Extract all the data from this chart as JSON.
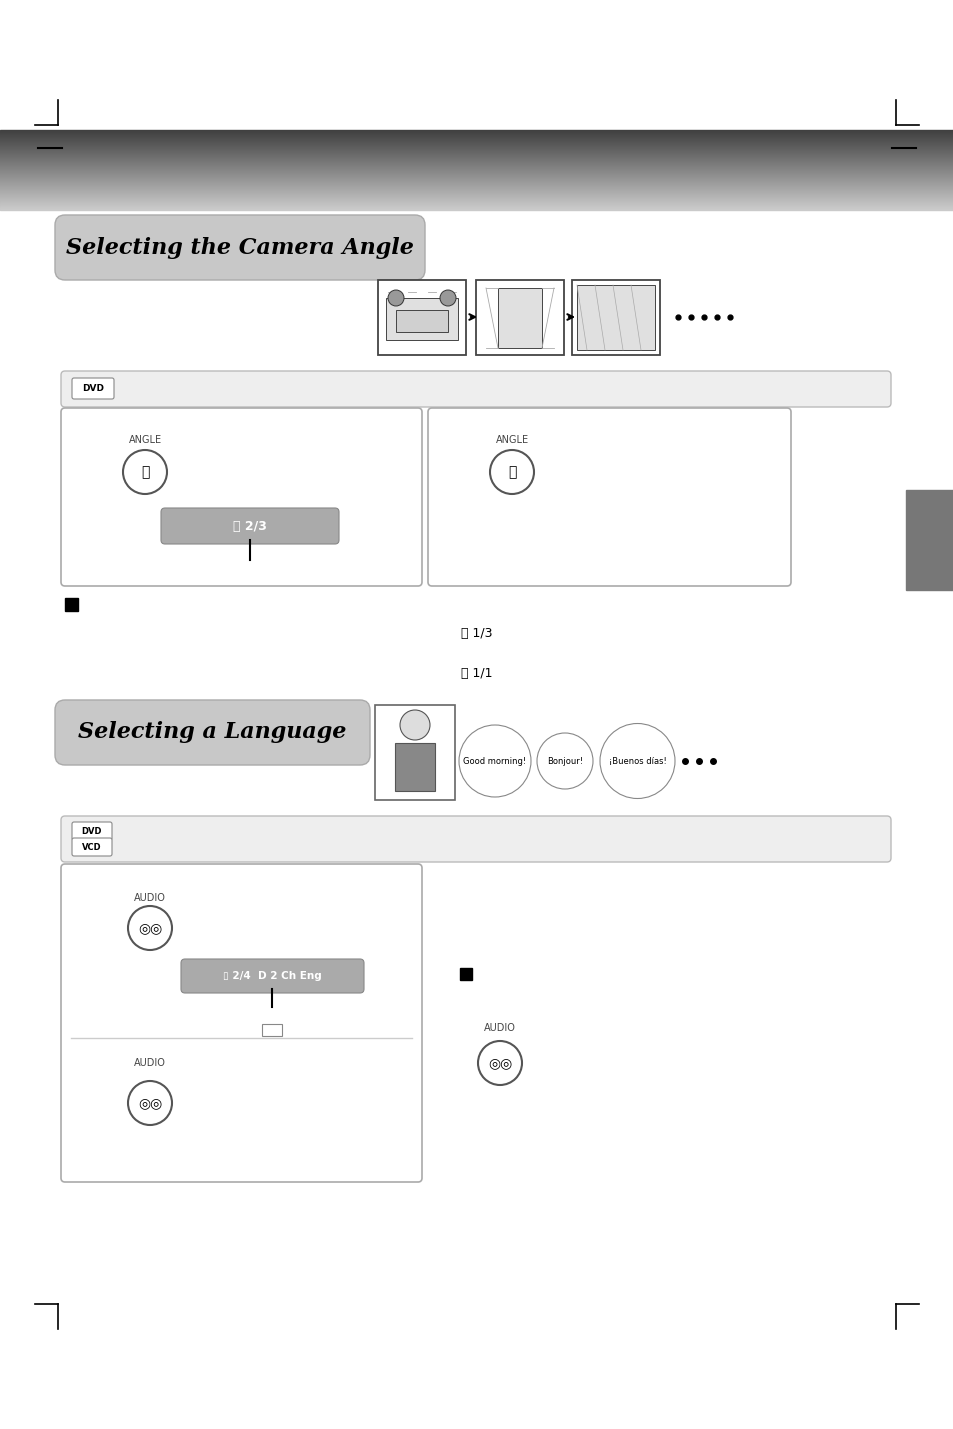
{
  "bg_color": "#ffffff",
  "section1_title": "Selecting the Camera Angle",
  "section2_title": "Selecting a Language",
  "dvd_label": "DVD",
  "vcd_label": "VCD",
  "angle_label": "ANGLE",
  "audio_label": "AUDIO",
  "osd_angle": "2/3",
  "osd_audio": "2/4  D 2 Ch Eng",
  "note_text1": "1/3",
  "note_text2": "1/1",
  "bubble1": "Good morning!",
  "bubble2": "Bonjour!",
  "bubble3": "¡Buenos días!",
  "fig_width": 9.54,
  "fig_height": 14.29,
  "dpi": 100
}
